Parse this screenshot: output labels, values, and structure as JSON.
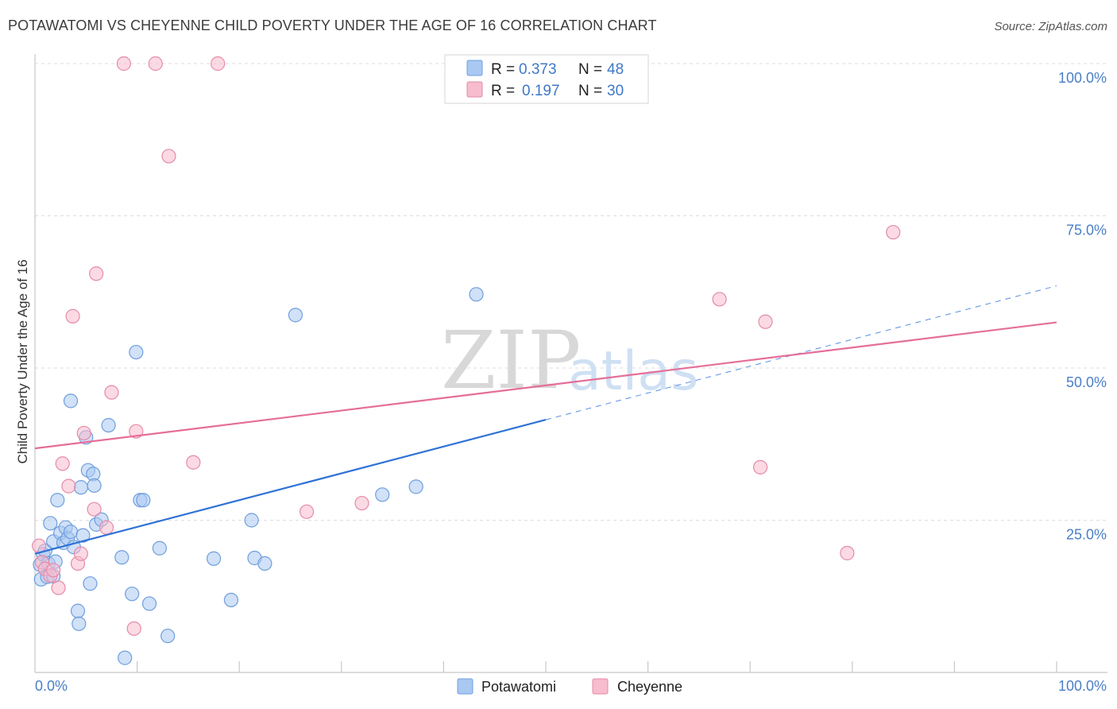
{
  "title": "POTAWATOMI VS CHEYENNE CHILD POVERTY UNDER THE AGE OF 16 CORRELATION CHART",
  "source": "Source: ZipAtlas.com",
  "watermark": {
    "zip": "ZIP",
    "atlas": "atlas"
  },
  "colors": {
    "potawatomi_fill": "#a9c8f2",
    "potawatomi_stroke": "#6f9fdc",
    "potawatomi_line": "#2f72d6",
    "cheyenne_fill": "#f7bccd",
    "cheyenne_stroke": "#e68aa8",
    "cheyenne_line": "#e56e98",
    "grid": "#dcdcdc",
    "axis_label": "#4a7fc8"
  },
  "legend": {
    "rows": [
      {
        "r_label": "R =",
        "r_value": "0.373",
        "n_label": "N =",
        "n_value": "48",
        "series": "potawatomi"
      },
      {
        "r_label": "R =",
        "r_value": "0.197",
        "n_label": "N =",
        "n_value": "30",
        "series": "cheyenne"
      }
    ]
  },
  "bottom_legend": {
    "potawatomi": "Potawatomi",
    "cheyenne": "Cheyenne"
  },
  "chart_data": {
    "type": "scatter",
    "title": "POTAWATOMI VS CHEYENNE CHILD POVERTY UNDER THE AGE OF 16 CORRELATION CHART",
    "xlabel": "",
    "ylabel": "Child Poverty Under the Age of 16",
    "xlim": [
      0,
      100
    ],
    "ylim": [
      0,
      100
    ],
    "x_tick_labels": [
      {
        "value": 0,
        "label": "0.0%"
      },
      {
        "value": 100,
        "label": "100.0%"
      }
    ],
    "y_tick_labels": [
      {
        "value": 25,
        "label": "25.0%"
      },
      {
        "value": 50,
        "label": "50.0%"
      },
      {
        "value": 75,
        "label": "75.0%"
      },
      {
        "value": 100,
        "label": "100.0%"
      }
    ],
    "series": [
      {
        "name": "Potawatomi",
        "r": 0.373,
        "n": 48,
        "trend": {
          "x0": 0,
          "y0": 19.5,
          "x1": 50,
          "y1": 41.5,
          "dash_to_x": 100,
          "dash_to_y": 63.5
        },
        "points": [
          [
            0.5,
            17.7
          ],
          [
            0.6,
            15.3
          ],
          [
            0.8,
            19.4
          ],
          [
            1.0,
            20.0
          ],
          [
            1.2,
            15.7
          ],
          [
            1.3,
            17.9
          ],
          [
            1.5,
            24.5
          ],
          [
            1.8,
            21.5
          ],
          [
            1.8,
            15.8
          ],
          [
            2.0,
            18.2
          ],
          [
            2.2,
            28.3
          ],
          [
            2.5,
            22.9
          ],
          [
            2.8,
            21.3
          ],
          [
            3.0,
            23.8
          ],
          [
            3.2,
            22.0
          ],
          [
            3.5,
            23.1
          ],
          [
            3.5,
            44.6
          ],
          [
            3.8,
            20.6
          ],
          [
            4.2,
            10.1
          ],
          [
            4.3,
            8.0
          ],
          [
            4.5,
            30.4
          ],
          [
            4.7,
            22.5
          ],
          [
            5.0,
            38.6
          ],
          [
            5.2,
            33.2
          ],
          [
            5.4,
            14.6
          ],
          [
            5.7,
            32.6
          ],
          [
            5.8,
            30.7
          ],
          [
            6.0,
            24.3
          ],
          [
            6.5,
            25.1
          ],
          [
            7.2,
            40.6
          ],
          [
            8.5,
            18.9
          ],
          [
            8.8,
            2.4
          ],
          [
            9.5,
            12.9
          ],
          [
            9.9,
            52.6
          ],
          [
            10.3,
            28.3
          ],
          [
            10.6,
            28.3
          ],
          [
            11.2,
            11.3
          ],
          [
            12.2,
            20.4
          ],
          [
            13.0,
            6.0
          ],
          [
            17.5,
            18.7
          ],
          [
            19.2,
            11.9
          ],
          [
            21.2,
            25.0
          ],
          [
            21.5,
            18.8
          ],
          [
            22.5,
            17.9
          ],
          [
            25.5,
            58.7
          ],
          [
            34.0,
            29.2
          ],
          [
            37.3,
            30.5
          ],
          [
            43.2,
            62.1
          ]
        ]
      },
      {
        "name": "Cheyenne",
        "r": 0.197,
        "n": 30,
        "trend": {
          "x0": 0,
          "y0": 36.8,
          "x1": 100,
          "y1": 57.5
        },
        "points": [
          [
            0.4,
            20.8
          ],
          [
            0.7,
            18.1
          ],
          [
            1.0,
            17.0
          ],
          [
            1.5,
            15.9
          ],
          [
            1.8,
            16.8
          ],
          [
            2.3,
            13.9
          ],
          [
            2.7,
            34.3
          ],
          [
            3.3,
            30.6
          ],
          [
            3.7,
            58.5
          ],
          [
            4.2,
            17.9
          ],
          [
            4.5,
            19.5
          ],
          [
            4.8,
            39.3
          ],
          [
            5.8,
            26.8
          ],
          [
            6.0,
            65.5
          ],
          [
            7.0,
            23.8
          ],
          [
            7.5,
            46.0
          ],
          [
            8.7,
            100.0
          ],
          [
            9.7,
            7.2
          ],
          [
            9.9,
            39.6
          ],
          [
            11.8,
            100.0
          ],
          [
            13.1,
            84.8
          ],
          [
            15.5,
            34.5
          ],
          [
            17.9,
            100.0
          ],
          [
            26.6,
            26.4
          ],
          [
            32.0,
            27.8
          ],
          [
            67.0,
            61.3
          ],
          [
            71.0,
            33.7
          ],
          [
            71.5,
            57.6
          ],
          [
            79.5,
            19.6
          ],
          [
            84.0,
            72.3
          ]
        ]
      }
    ]
  }
}
